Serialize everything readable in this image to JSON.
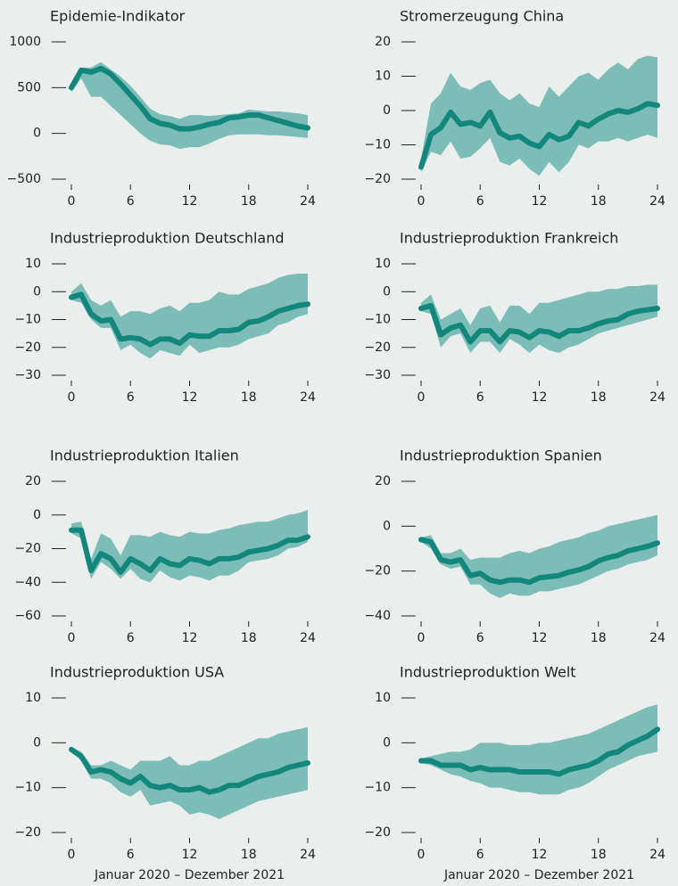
{
  "chart_data": [
    {
      "type": "line",
      "title": "Epidemie-Indikator",
      "x": [
        0,
        1,
        2,
        3,
        4,
        5,
        6,
        7,
        8,
        9,
        10,
        11,
        12,
        13,
        14,
        15,
        16,
        17,
        18,
        19,
        20,
        21,
        22,
        23,
        24
      ],
      "xlim": [
        -0.5,
        24.5
      ],
      "xticks": [
        0,
        6,
        12,
        18,
        24
      ],
      "ylim": [
        -500,
        1000
      ],
      "yticks": [
        {
          "value": -500,
          "label": "−500"
        },
        0,
        500,
        1000
      ],
      "series": [
        {
          "color": "#14877d",
          "band_color": "#7cbdb8",
          "values": [
            500,
            690,
            670,
            710,
            650,
            540,
            420,
            300,
            160,
            110,
            90,
            50,
            50,
            70,
            100,
            120,
            170,
            180,
            200,
            200,
            170,
            140,
            110,
            80,
            60
          ],
          "lower": [
            450,
            600,
            400,
            400,
            300,
            200,
            100,
            0,
            -80,
            -120,
            -130,
            -170,
            -150,
            -150,
            -110,
            -60,
            -20,
            -10,
            -10,
            -10,
            -20,
            -20,
            -30,
            -40,
            -50
          ],
          "upper": [
            550,
            720,
            720,
            780,
            700,
            620,
            520,
            400,
            270,
            210,
            190,
            160,
            200,
            200,
            190,
            200,
            210,
            220,
            260,
            250,
            240,
            240,
            230,
            220,
            200
          ]
        }
      ]
    },
    {
      "type": "line",
      "title": "Stromerzeugung China",
      "x": [
        0,
        1,
        2,
        3,
        4,
        5,
        6,
        7,
        8,
        9,
        10,
        11,
        12,
        13,
        14,
        15,
        16,
        17,
        18,
        19,
        20,
        21,
        22,
        23,
        24
      ],
      "xlim": [
        -0.5,
        24.5
      ],
      "xticks": [
        0,
        6,
        12,
        18,
        24
      ],
      "ylim": [
        -20,
        20
      ],
      "yticks": [
        {
          "value": -20,
          "label": "−20"
        },
        {
          "value": -10,
          "label": "−10"
        },
        0,
        10,
        20
      ],
      "series": [
        {
          "color": "#14877d",
          "band_color": "#7cbdb8",
          "values": [
            -16.5,
            -7,
            -5,
            -0.5,
            -4,
            -3.5,
            -4.5,
            -0.5,
            -6.5,
            -8,
            -7.5,
            -9.5,
            -10.5,
            -7,
            -8.5,
            -7.5,
            -3.5,
            -4.5,
            -2.5,
            -1,
            0,
            -0.5,
            0.5,
            2,
            1.5
          ],
          "lower": [
            -18,
            -12,
            -13,
            -9,
            -14,
            -13.5,
            -11,
            -8,
            -15,
            -16,
            -14,
            -17,
            -19,
            -15,
            -18,
            -15,
            -10,
            -11,
            -9,
            -9,
            -8,
            -9,
            -8,
            -7,
            -8
          ],
          "upper": [
            -14,
            2,
            5,
            11,
            7,
            6,
            8,
            9,
            5,
            3,
            5,
            2,
            1,
            7,
            4,
            7,
            10,
            11,
            9,
            12,
            14,
            12,
            15,
            16,
            15.5
          ]
        }
      ]
    },
    {
      "type": "line",
      "title": "Industrieproduktion Deutschland",
      "x": [
        0,
        1,
        2,
        3,
        4,
        5,
        6,
        7,
        8,
        9,
        10,
        11,
        12,
        13,
        14,
        15,
        16,
        17,
        18,
        19,
        20,
        21,
        22,
        23,
        24
      ],
      "xlim": [
        -0.5,
        24.5
      ],
      "xticks": [
        0,
        6,
        12,
        18,
        24
      ],
      "ylim": [
        -30,
        10
      ],
      "yticks": [
        {
          "value": -30,
          "label": "−30"
        },
        {
          "value": -20,
          "label": "−20"
        },
        {
          "value": -10,
          "label": "−10"
        },
        0,
        10
      ],
      "series": [
        {
          "color": "#14877d",
          "band_color": "#7cbdb8",
          "values": [
            -2,
            -1,
            -8,
            -10.5,
            -10,
            -17,
            -16.5,
            -17,
            -19,
            -17,
            -17,
            -18.5,
            -15.5,
            -16,
            -16,
            -14,
            -14,
            -13.5,
            -11,
            -10.5,
            -9,
            -7,
            -6,
            -5,
            -4.5
          ],
          "lower": [
            -3,
            -4,
            -10,
            -13,
            -13,
            -21,
            -19,
            -22,
            -24,
            -21,
            -22,
            -23,
            -19,
            -22,
            -21,
            -20,
            -20,
            -19,
            -17,
            -16,
            -15,
            -12,
            -11,
            -9,
            -8
          ],
          "upper": [
            0,
            3,
            -3,
            -5,
            -3,
            -9,
            -7,
            -7,
            -8,
            -6,
            -5,
            -7,
            -4,
            -4,
            -3,
            0,
            -1,
            -1,
            1,
            2,
            3,
            5,
            6,
            6.5,
            6.5
          ]
        }
      ]
    },
    {
      "type": "line",
      "title": "Industrieproduktion Frankreich",
      "x": [
        0,
        1,
        2,
        3,
        4,
        5,
        6,
        7,
        8,
        9,
        10,
        11,
        12,
        13,
        14,
        15,
        16,
        17,
        18,
        19,
        20,
        21,
        22,
        23,
        24
      ],
      "xlim": [
        -0.5,
        24.5
      ],
      "xticks": [
        0,
        6,
        12,
        18,
        24
      ],
      "ylim": [
        -30,
        10
      ],
      "yticks": [
        {
          "value": -30,
          "label": "−30"
        },
        {
          "value": -20,
          "label": "−20"
        },
        {
          "value": -10,
          "label": "−10"
        },
        0,
        10
      ],
      "series": [
        {
          "color": "#14877d",
          "band_color": "#7cbdb8",
          "values": [
            -6,
            -5,
            -15.5,
            -13,
            -12,
            -18,
            -14,
            -14,
            -18,
            -14,
            -14.5,
            -16.5,
            -14,
            -14.5,
            -16,
            -14,
            -14,
            -13,
            -11.5,
            -10.5,
            -10,
            -8,
            -7,
            -6.5,
            -6
          ],
          "lower": [
            -7,
            -8,
            -20,
            -16,
            -15,
            -22,
            -18,
            -18,
            -22,
            -17,
            -19,
            -22,
            -19,
            -21,
            -22,
            -20,
            -19,
            -17,
            -15,
            -14,
            -13,
            -12,
            -11,
            -10,
            -9
          ],
          "upper": [
            -4,
            -1,
            -10,
            -8,
            -6,
            -12,
            -6,
            -5,
            -11,
            -5,
            -5,
            -8,
            -4,
            -4,
            -3,
            -2,
            -1,
            0,
            0,
            1,
            1,
            2,
            2,
            2.5,
            2.5
          ]
        }
      ]
    },
    {
      "type": "line",
      "title": "Industrieproduktion Italien",
      "x": [
        0,
        1,
        2,
        3,
        4,
        5,
        6,
        7,
        8,
        9,
        10,
        11,
        12,
        13,
        14,
        15,
        16,
        17,
        18,
        19,
        20,
        21,
        22,
        23,
        24
      ],
      "xlim": [
        -0.5,
        24.5
      ],
      "xticks": [
        0,
        6,
        12,
        18,
        24
      ],
      "ylim": [
        -60,
        20
      ],
      "yticks": [
        {
          "value": -60,
          "label": "−60"
        },
        {
          "value": -40,
          "label": "−40"
        },
        {
          "value": -20,
          "label": "−20"
        },
        0,
        20
      ],
      "series": [
        {
          "color": "#14877d",
          "band_color": "#7cbdb8",
          "values": [
            -9,
            -9,
            -33,
            -23,
            -26,
            -34,
            -26,
            -29,
            -33,
            -26,
            -29,
            -30,
            -26,
            -27,
            -29,
            -26,
            -26,
            -25,
            -22,
            -21,
            -20,
            -18,
            -15,
            -15,
            -13
          ],
          "lower": [
            -11,
            -14,
            -38,
            -28,
            -32,
            -38,
            -32,
            -38,
            -40,
            -33,
            -37,
            -39,
            -36,
            -37,
            -39,
            -36,
            -36,
            -33,
            -28,
            -27,
            -26,
            -24,
            -20,
            -19,
            -16
          ],
          "upper": [
            -5,
            -4,
            -26,
            -11,
            -14,
            -24,
            -12,
            -12,
            -13,
            -10,
            -12,
            -13,
            -10,
            -11,
            -11,
            -9,
            -8,
            -6,
            -5,
            -4,
            -4,
            -2,
            0,
            1,
            3
          ]
        }
      ]
    },
    {
      "type": "line",
      "title": "Industrieproduktion Spanien",
      "x": [
        0,
        1,
        2,
        3,
        4,
        5,
        6,
        7,
        8,
        9,
        10,
        11,
        12,
        13,
        14,
        15,
        16,
        17,
        18,
        19,
        20,
        21,
        22,
        23,
        24
      ],
      "xlim": [
        -0.5,
        24.5
      ],
      "xticks": [
        0,
        6,
        12,
        18,
        24
      ],
      "ylim": [
        -40,
        20
      ],
      "yticks": [
        {
          "value": -40,
          "label": "−40"
        },
        {
          "value": -20,
          "label": "−20"
        },
        0,
        20
      ],
      "series": [
        {
          "color": "#14877d",
          "band_color": "#7cbdb8",
          "values": [
            -6,
            -7,
            -15,
            -16,
            -15,
            -22,
            -21,
            -24,
            -25,
            -24,
            -24,
            -25,
            -23,
            -22.5,
            -22,
            -20.5,
            -19.5,
            -18,
            -15.5,
            -14,
            -13,
            -11,
            -10,
            -9,
            -7.5
          ],
          "lower": [
            -7,
            -10,
            -17,
            -19,
            -18,
            -26,
            -26,
            -30,
            -32,
            -30,
            -31,
            -31,
            -29,
            -29,
            -28,
            -27,
            -26,
            -24,
            -22,
            -20,
            -19,
            -17,
            -16,
            -15,
            -13
          ],
          "upper": [
            -5,
            -4,
            -12,
            -12,
            -10,
            -15,
            -14,
            -14,
            -14,
            -12,
            -11,
            -12,
            -10,
            -9,
            -7,
            -6,
            -5,
            -3,
            -2,
            0,
            1,
            2,
            3,
            4,
            5
          ]
        }
      ]
    },
    {
      "type": "line",
      "title": "Industrieproduktion USA",
      "xlabel": "Januar 2020 – Dezember 2021",
      "x": [
        0,
        1,
        2,
        3,
        4,
        5,
        6,
        7,
        8,
        9,
        10,
        11,
        12,
        13,
        14,
        15,
        16,
        17,
        18,
        19,
        20,
        21,
        22,
        23,
        24
      ],
      "xlim": [
        -0.5,
        24.5
      ],
      "xticks": [
        0,
        6,
        12,
        18,
        24
      ],
      "ylim": [
        -20,
        10
      ],
      "yticks": [
        {
          "value": -20,
          "label": "−20"
        },
        {
          "value": -10,
          "label": "−10"
        },
        0,
        10
      ],
      "series": [
        {
          "color": "#14877d",
          "band_color": "#7cbdb8",
          "values": [
            -1.5,
            -3,
            -6.5,
            -6,
            -6.5,
            -8,
            -9,
            -7.5,
            -9.5,
            -10,
            -9.5,
            -10.5,
            -10.5,
            -10,
            -11,
            -10.5,
            -9.5,
            -9.5,
            -8.5,
            -7.5,
            -7,
            -6.5,
            -5.5,
            -5,
            -4.5
          ],
          "lower": [
            -2,
            -4,
            -8,
            -8,
            -9,
            -11,
            -12,
            -10.5,
            -14,
            -13.5,
            -13,
            -14,
            -16,
            -15.5,
            -16,
            -17,
            -16,
            -15,
            -14,
            -13,
            -12.5,
            -12,
            -11.5,
            -11,
            -10.5
          ],
          "upper": [
            -1,
            -2,
            -5,
            -5,
            -4,
            -5,
            -6,
            -4,
            -4,
            -4,
            -3,
            -5,
            -5,
            -4,
            -4,
            -3,
            -2,
            -1,
            0,
            1,
            1,
            2,
            2.5,
            3,
            3.5
          ]
        }
      ]
    },
    {
      "type": "line",
      "title": "Industrieproduktion Welt",
      "xlabel": "Januar 2020 – Dezember 2021",
      "x": [
        0,
        1,
        2,
        3,
        4,
        5,
        6,
        7,
        8,
        9,
        10,
        11,
        12,
        13,
        14,
        15,
        16,
        17,
        18,
        19,
        20,
        21,
        22,
        23,
        24
      ],
      "xlim": [
        -0.5,
        24.5
      ],
      "xticks": [
        0,
        6,
        12,
        18,
        24
      ],
      "ylim": [
        -20,
        10
      ],
      "yticks": [
        {
          "value": -20,
          "label": "−20"
        },
        {
          "value": -10,
          "label": "−10"
        },
        0,
        10
      ],
      "series": [
        {
          "color": "#14877d",
          "band_color": "#7cbdb8",
          "values": [
            -4,
            -4,
            -5,
            -5,
            -5,
            -6,
            -5.5,
            -6,
            -6,
            -6,
            -6.5,
            -6.5,
            -6.5,
            -6.5,
            -7,
            -6,
            -5.5,
            -5,
            -4,
            -2.5,
            -2,
            -0.5,
            0.5,
            1.5,
            3
          ],
          "lower": [
            -4.5,
            -5,
            -6,
            -7,
            -7.5,
            -8.5,
            -9,
            -10,
            -10,
            -10.5,
            -11,
            -11,
            -11.5,
            -11.5,
            -11.5,
            -10.5,
            -10,
            -9,
            -7.5,
            -6,
            -5,
            -4,
            -3,
            -2.5,
            -2
          ],
          "upper": [
            -3.5,
            -3,
            -2.5,
            -2,
            -2,
            -1.5,
            0,
            0,
            0,
            -0.5,
            -0.5,
            -0.5,
            0,
            0,
            0.5,
            1,
            1.5,
            2,
            3,
            4,
            5,
            6,
            7,
            8,
            8.5
          ]
        }
      ]
    }
  ]
}
